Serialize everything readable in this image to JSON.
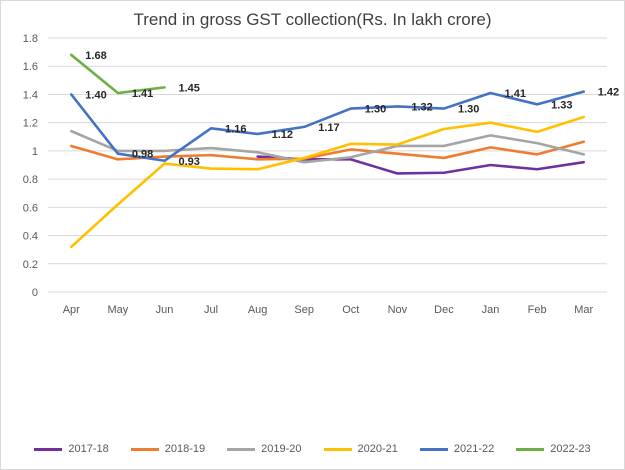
{
  "chart_data": {
    "type": "line",
    "title": "Trend in gross GST collection(Rs. In lakh crore)",
    "xlabel": "",
    "ylabel": "",
    "categories": [
      "Apr",
      "May",
      "Jun",
      "Jul",
      "Aug",
      "Sep",
      "Oct",
      "Nov",
      "Dec",
      "Jan",
      "Feb",
      "Mar"
    ],
    "ylim": [
      0,
      1.8
    ],
    "yticks": [
      "0",
      "0.2",
      "0.4",
      "0.6",
      "0.8",
      "1",
      "1.2",
      "1.4",
      "1.6",
      "1.8"
    ],
    "grid": true,
    "legend_position": "bottom",
    "series": [
      {
        "name": "2017-18",
        "color": "#7030a0",
        "values": [
          null,
          null,
          null,
          null,
          0.96,
          0.94,
          0.94,
          0.84,
          0.845,
          0.9,
          0.87,
          0.92
        ],
        "labels": [
          null,
          null,
          null,
          null,
          null,
          null,
          null,
          null,
          null,
          null,
          null,
          null
        ]
      },
      {
        "name": "2018-19",
        "color": "#ed7d31",
        "values": [
          1.035,
          0.94,
          0.96,
          0.97,
          0.94,
          0.945,
          1.01,
          0.98,
          0.95,
          1.025,
          0.975,
          1.065
        ],
        "labels": [
          null,
          null,
          null,
          null,
          null,
          null,
          null,
          null,
          null,
          null,
          null,
          null
        ]
      },
      {
        "name": "2019-20",
        "color": "#a5a5a5",
        "values": [
          1.14,
          1.0,
          1.0,
          1.02,
          0.99,
          0.92,
          0.955,
          1.035,
          1.035,
          1.11,
          1.055,
          0.975
        ],
        "labels": [
          null,
          null,
          null,
          null,
          null,
          null,
          null,
          null,
          null,
          null,
          null,
          null
        ]
      },
      {
        "name": "2020-21",
        "color": "#ffc000",
        "values": [
          0.32,
          0.62,
          0.91,
          0.875,
          0.87,
          0.95,
          1.05,
          1.045,
          1.155,
          1.2,
          1.135,
          1.24
        ],
        "labels": [
          null,
          null,
          null,
          null,
          null,
          null,
          null,
          null,
          null,
          null,
          null,
          null
        ]
      },
      {
        "name": "2021-22",
        "color": "#4472c4",
        "values": [
          1.4,
          0.98,
          0.93,
          1.16,
          1.12,
          1.17,
          1.3,
          1.315,
          1.3,
          1.41,
          1.33,
          1.42
        ],
        "labels": [
          "1.40",
          "0.98",
          "0.93",
          "1.16",
          "1.12",
          "1.17",
          "1.30",
          "1.32",
          "1.30",
          "1.41",
          "1.33",
          "1.42"
        ]
      },
      {
        "name": "2022-23",
        "color": "#70ad47",
        "values": [
          1.68,
          1.41,
          1.45,
          null,
          null,
          null,
          null,
          null,
          null,
          null,
          null,
          null
        ],
        "labels": [
          "1.68",
          "1.41",
          "1.45",
          null,
          null,
          null,
          null,
          null,
          null,
          null,
          null,
          null
        ]
      }
    ]
  }
}
